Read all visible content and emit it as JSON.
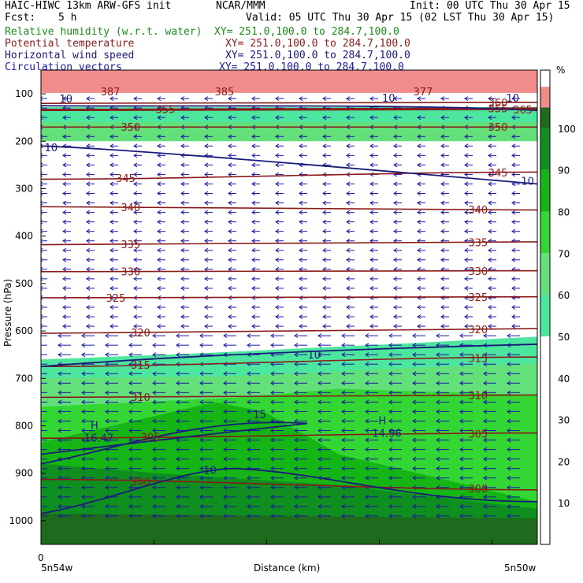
{
  "header": {
    "model": "HAIC-HIWC 13km ARW-GFS init",
    "org": "NCAR/MMM",
    "init": "Init: 00 UTC Thu 30 Apr 15",
    "fcst_label": "Fcst:",
    "fcst_value": "5 h",
    "valid": "Valid: 05 UTC Thu 30 Apr 15 (02 LST Thu 30 Apr 15)",
    "fields": [
      {
        "name": "Relative humidity (w.r.t. water)",
        "xy": "XY= 251.0,100.0 to 284.7,100.0",
        "color": "#1a8c1a"
      },
      {
        "name": "Potential temperature",
        "xy": "XY= 251.0,100.0 to 284.7,100.0",
        "color": "#8b1a1a"
      },
      {
        "name": "Horizontal wind speed",
        "xy": "XY= 251.0,100.0 to 284.7,100.0",
        "color": "#1a1a7a"
      },
      {
        "name": "Circulation vectors",
        "xy": "XY= 251.0,100.0 to 284.7,100.0",
        "color": "#1a1aa0"
      }
    ]
  },
  "chart_data": {
    "type": "contour",
    "xlabel": "Distance (km)",
    "ylabel": "Pressure (hPa)",
    "x_start_label": "0",
    "x_left_label": "5n54w",
    "x_right_label": "5n50w",
    "y_ticks": [
      100,
      200,
      300,
      400,
      500,
      600,
      700,
      800,
      900,
      1000
    ],
    "ylim": [
      50,
      1050
    ],
    "colorbar": {
      "unit": "%",
      "levels": [
        10,
        20,
        30,
        40,
        50,
        60,
        70,
        80,
        90,
        100
      ],
      "fills": [
        {
          "from": 0,
          "to": 50,
          "color": "#ffffff"
        },
        {
          "from": 50,
          "to": 60,
          "color": "#4de69e"
        },
        {
          "from": 60,
          "to": 70,
          "color": "#63e07a"
        },
        {
          "from": 70,
          "to": 80,
          "color": "#33d633"
        },
        {
          "from": 80,
          "to": 90,
          "color": "#14b514"
        },
        {
          "from": 90,
          "to": 100,
          "color": "#0f8f1f"
        },
        {
          "from": 100,
          "to": 105,
          "color": "#1e6b1e"
        },
        {
          "from": 105,
          "to": 110,
          "color": "#f08c8c"
        }
      ]
    },
    "theta_contours": [
      {
        "value": 300,
        "p_left": 913,
        "p_right": 935,
        "label_pos": [
          0.2,
          0.88
        ]
      },
      {
        "value": 305,
        "p_left": 826,
        "p_right": 815,
        "label_pos": [
          0.22,
          0.88
        ]
      },
      {
        "value": 310,
        "p_left": 740,
        "p_right": 735,
        "label_pos": [
          0.2,
          0.88
        ]
      },
      {
        "value": 315,
        "p_left": 675,
        "p_right": 655,
        "label_pos": [
          0.2,
          0.88
        ]
      },
      {
        "value": 320,
        "p_left": 605,
        "p_right": 595,
        "label_pos": [
          0.2,
          0.88
        ]
      },
      {
        "value": 325,
        "p_left": 530,
        "p_right": 528,
        "label_pos": [
          0.15,
          0.88
        ]
      },
      {
        "value": 330,
        "p_left": 475,
        "p_right": 473,
        "label_pos": [
          0.18,
          0.88
        ]
      },
      {
        "value": 335,
        "p_left": 418,
        "p_right": 412,
        "label_pos": [
          0.18,
          0.88
        ]
      },
      {
        "value": 340,
        "p_left": 338,
        "p_right": 345,
        "label_pos": [
          0.18,
          0.88
        ]
      },
      {
        "value": 345,
        "p_left": 280,
        "p_right": 265,
        "label_pos": [
          0.17,
          0.92
        ]
      },
      {
        "value": 350,
        "p_left": 170,
        "p_right": 170,
        "label_pos": [
          0.18,
          0.92
        ]
      },
      {
        "value": 355,
        "p_left": 133,
        "p_right": 130,
        "label_pos": [
          0.25,
          0.92
        ]
      },
      {
        "value": 360,
        "p_left": 120,
        "p_right": 118,
        "label_pos": [
          0.92
        ]
      },
      {
        "value": 365,
        "p_left": 135,
        "p_right": 133,
        "label_pos": [
          0.97
        ]
      }
    ],
    "theta_top_labels": [
      "387",
      "385",
      "377"
    ],
    "wind_labels": [
      "10",
      "10",
      "10",
      "10",
      "10",
      "15",
      "10",
      "10"
    ],
    "highs": [
      {
        "label": "H",
        "value": "16.47",
        "x": 0.1,
        "p": 820
      },
      {
        "label": "H",
        "value": "14.96",
        "x": 0.68,
        "p": 810
      }
    ]
  }
}
